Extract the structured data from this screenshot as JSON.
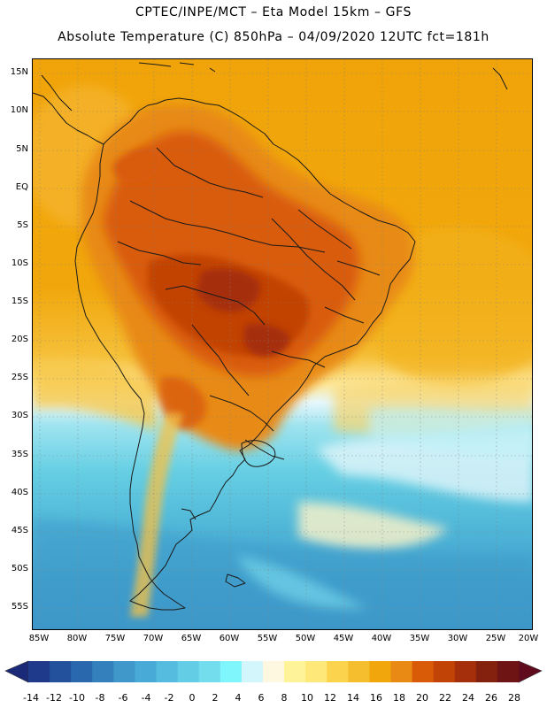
{
  "header": {
    "line1": "CPTEC/INPE/MCT –  Eta Model 15km – GFS",
    "line2": "Absolute Temperature (C) 850hPa – 04/09/2020 12UTC fct=181h"
  },
  "map": {
    "lat_labels": [
      "15N",
      "10N",
      "5N",
      "EQ",
      "5S",
      "10S",
      "15S",
      "20S",
      "25S",
      "30S",
      "35S",
      "40S",
      "45S",
      "50S",
      "55S"
    ],
    "lon_labels": [
      "85W",
      "80W",
      "75W",
      "70W",
      "65W",
      "60W",
      "55W",
      "50W",
      "45W",
      "40W",
      "35W",
      "30W",
      "25W",
      "20W"
    ]
  },
  "colorbar": {
    "labels": [
      "-14",
      "-12",
      "-10",
      "-8",
      "-6",
      "-4",
      "-2",
      "0",
      "2",
      "4",
      "6",
      "8",
      "10",
      "12",
      "14",
      "16",
      "18",
      "20",
      "22",
      "24",
      "26",
      "28"
    ],
    "colors": [
      "#1f3a8a",
      "#24519c",
      "#2a68ae",
      "#3480bd",
      "#3f97ca",
      "#48aad6",
      "#55bcdf",
      "#63cde6",
      "#73ddee",
      "#7ff6fb",
      "#d2f6fb",
      "#fff8e0",
      "#fff39a",
      "#ffe87a",
      "#fcd34d",
      "#f4be2f",
      "#f1a70c",
      "#e88a14",
      "#d95b07",
      "#c24306",
      "#a52f0a",
      "#84200e",
      "#6e1414"
    ],
    "low_cap_color": "#1a2a78",
    "high_cap_color": "#600a1e"
  }
}
